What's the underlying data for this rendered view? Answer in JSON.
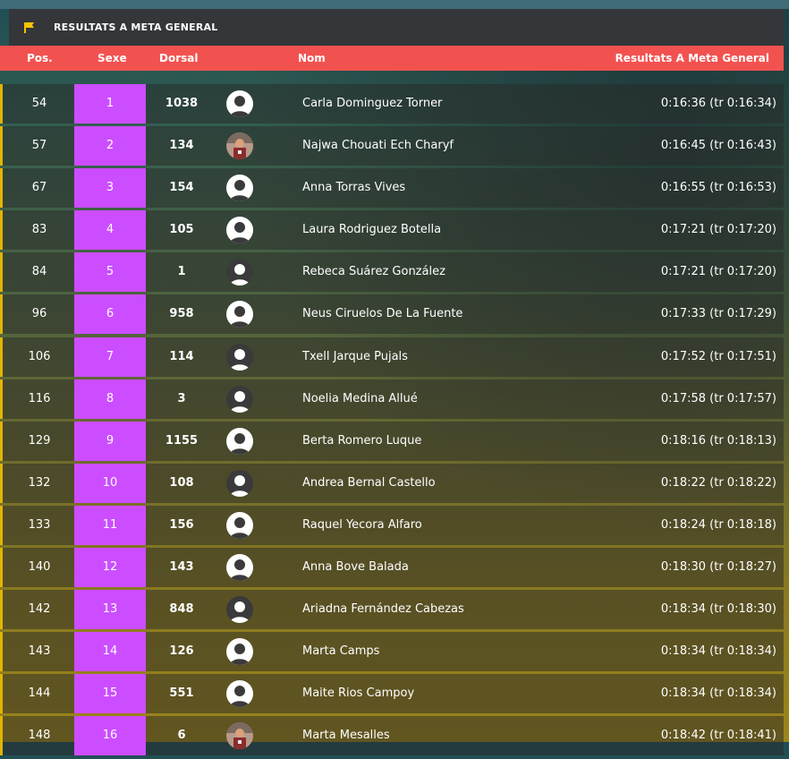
{
  "section": {
    "title": "RESULTATS A META GENERAL"
  },
  "columns": {
    "pos": "Pos.",
    "sex": "Sexe",
    "bib": "Dorsal",
    "name": "Nom",
    "result": "Resultats A Meta General"
  },
  "colors": {
    "header_bg": "#343639",
    "column_header_bg": "#f2524f",
    "sex_cell": "#cc4dff",
    "row_accent": "#e3b400"
  },
  "rows": [
    {
      "pos": "54",
      "sex": "1",
      "bib": "1038",
      "avatar": "white",
      "name": "Carla Dominguez Torner",
      "time": "0:16:36 (tr 0:16:34)"
    },
    {
      "pos": "57",
      "sex": "2",
      "bib": "134",
      "avatar": "photo",
      "name": "Najwa Chouati Ech Charyf",
      "time": "0:16:45 (tr 0:16:43)"
    },
    {
      "pos": "67",
      "sex": "3",
      "bib": "154",
      "avatar": "white",
      "name": "Anna Torras Vives",
      "time": "0:16:55 (tr 0:16:53)"
    },
    {
      "pos": "83",
      "sex": "4",
      "bib": "105",
      "avatar": "white",
      "name": "Laura Rodriguez Botella",
      "time": "0:17:21 (tr 0:17:20)"
    },
    {
      "pos": "84",
      "sex": "5",
      "bib": "1",
      "avatar": "dark",
      "name": "Rebeca Suárez González",
      "time": "0:17:21 (tr 0:17:20)"
    },
    {
      "pos": "96",
      "sex": "6",
      "bib": "958",
      "avatar": "white",
      "name": "Neus Ciruelos De La Fuente",
      "time": "0:17:33 (tr 0:17:29)"
    },
    {
      "pos": "106",
      "sex": "7",
      "bib": "114",
      "avatar": "dark",
      "name": "Txell Jarque Pujals",
      "time": "0:17:52 (tr 0:17:51)"
    },
    {
      "pos": "116",
      "sex": "8",
      "bib": "3",
      "avatar": "dark",
      "name": "Noelia Medina Allué",
      "time": "0:17:58 (tr 0:17:57)"
    },
    {
      "pos": "129",
      "sex": "9",
      "bib": "1155",
      "avatar": "white",
      "name": "Berta Romero Luque",
      "time": "0:18:16 (tr 0:18:13)"
    },
    {
      "pos": "132",
      "sex": "10",
      "bib": "108",
      "avatar": "dark",
      "name": "Andrea Bernal Castello",
      "time": "0:18:22 (tr 0:18:22)"
    },
    {
      "pos": "133",
      "sex": "11",
      "bib": "156",
      "avatar": "white",
      "name": "Raquel Yecora Alfaro",
      "time": "0:18:24 (tr 0:18:18)"
    },
    {
      "pos": "140",
      "sex": "12",
      "bib": "143",
      "avatar": "white",
      "name": "Anna Bove Balada",
      "time": "0:18:30 (tr 0:18:27)"
    },
    {
      "pos": "142",
      "sex": "13",
      "bib": "848",
      "avatar": "dark",
      "name": "Ariadna Fernández Cabezas",
      "time": "0:18:34 (tr 0:18:30)"
    },
    {
      "pos": "143",
      "sex": "14",
      "bib": "126",
      "avatar": "white",
      "name": "Marta Camps",
      "time": "0:18:34 (tr 0:18:34)"
    },
    {
      "pos": "144",
      "sex": "15",
      "bib": "551",
      "avatar": "white",
      "name": "Maite Rios Campoy",
      "time": "0:18:34 (tr 0:18:34)"
    },
    {
      "pos": "148",
      "sex": "16",
      "bib": "6",
      "avatar": "photo",
      "name": "Marta Mesalles",
      "time": "0:18:42 (tr 0:18:41)"
    }
  ]
}
